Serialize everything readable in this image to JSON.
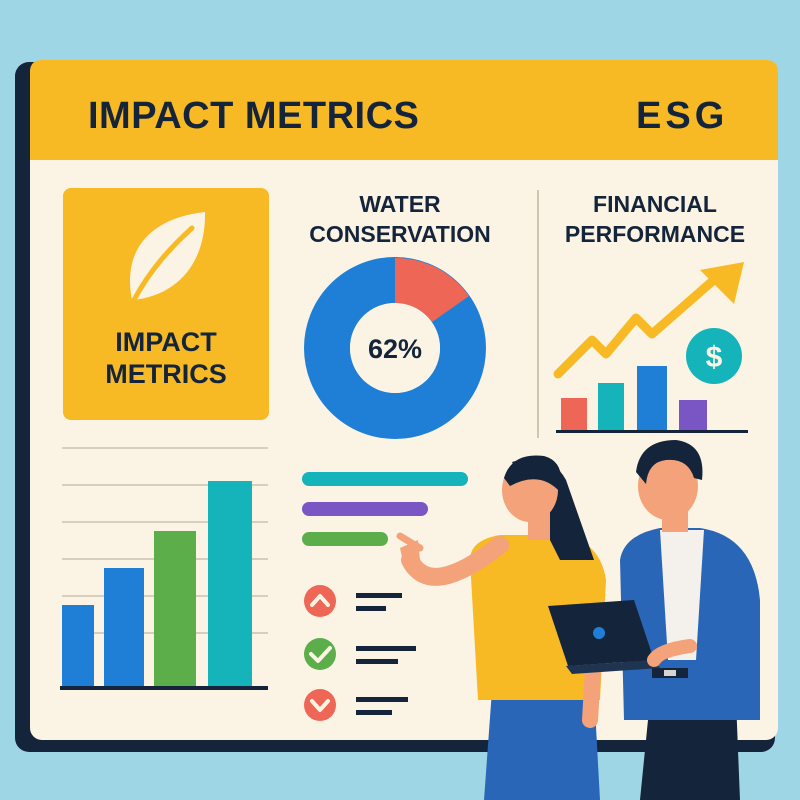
{
  "header": {
    "title": "IMPACT METRICS",
    "badge": "ESG"
  },
  "tile": {
    "line1": "IMPACT",
    "line2": "METRICS",
    "icon": "leaf-icon"
  },
  "water": {
    "title_line1": "WATER",
    "title_line2": "CONSERVATION",
    "percent_label": "62%"
  },
  "financial": {
    "title_line1": "FINANCIAL",
    "title_line2": "PERFORMANCE",
    "icon": "dollar-icon"
  },
  "checklist": {
    "items": [
      {
        "status": "up",
        "icon": "chevron-up-icon"
      },
      {
        "status": "done",
        "icon": "check-icon"
      },
      {
        "status": "down",
        "icon": "chevron-down-icon"
      }
    ]
  },
  "colors": {
    "background": "#9fd6e6",
    "board": "#fbf4e4",
    "accent": "#f7b924",
    "navy": "#14243a",
    "blue": "#1f7fd6",
    "teal": "#15b3ba",
    "green": "#5cae4a",
    "red": "#ee6655",
    "purple": "#7a56c4"
  }
}
